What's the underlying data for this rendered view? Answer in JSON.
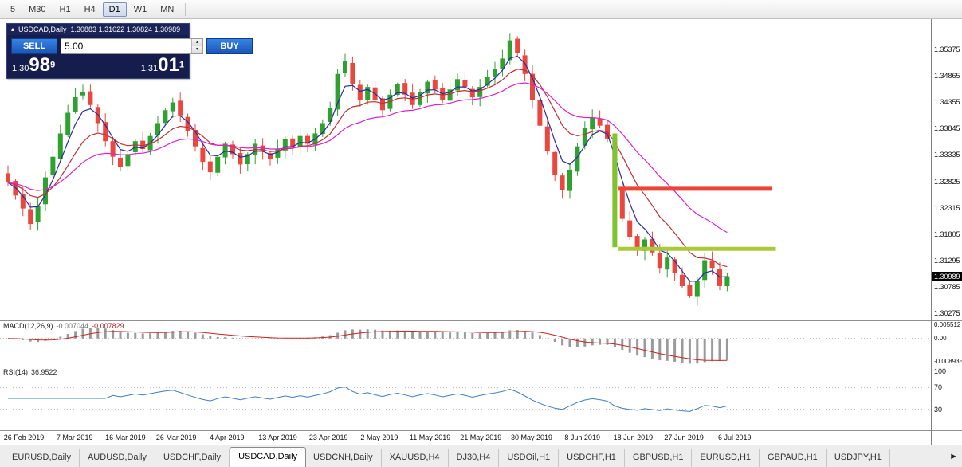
{
  "toolbar": {
    "timeframes": [
      "5",
      "M30",
      "H1",
      "H4",
      "D1",
      "W1",
      "MN"
    ],
    "active": "D1"
  },
  "chart": {
    "title": "USDCAD,Daily",
    "ohlc_text": "1.30883 1.31022 1.30824 1.30989",
    "trade_panel": {
      "sell_label": "SELL",
      "buy_label": "BUY",
      "volume": "5.00",
      "bid_small": "1.30",
      "bid_big": "98",
      "bid_sup": "9",
      "ask_small": "1.31",
      "ask_big": "01",
      "ask_sup": "1"
    },
    "current_price": "1.30989",
    "macd": {
      "label": "MACD(12,26,9)",
      "value": "-0.007044",
      "signal": "-0.007829",
      "axis": [
        "0.005512",
        "0.00",
        "-0.008935"
      ]
    },
    "rsi": {
      "label": "RSI(14)",
      "value": "36.9522",
      "axis": [
        "100",
        "70",
        "30"
      ]
    },
    "dates": [
      "26 Feb 2019",
      "7 Mar 2019",
      "16 Mar 2019",
      "26 Mar 2019",
      "4 Apr 2019",
      "13 Apr 2019",
      "23 Apr 2019",
      "2 May 2019",
      "11 May 2019",
      "21 May 2019",
      "30 May 2019",
      "8 Jun 2019",
      "18 Jun 2019",
      "27 Jun 2019",
      "6 Jul 2019"
    ]
  },
  "chart_data": {
    "type": "candlestick",
    "symbol": "USDCAD",
    "timeframe": "Daily",
    "ohlc_current": {
      "open": 1.30883,
      "high": 1.31022,
      "low": 1.30824,
      "close": 1.30989
    },
    "ylim": [
      1.30275,
      1.3596
    ],
    "price_ticks": [
      1.35375,
      1.34865,
      1.34355,
      1.33845,
      1.33335,
      1.32825,
      1.32315,
      1.31805,
      1.31295,
      1.30785,
      1.30275
    ],
    "closes": [
      1.328,
      1.3255,
      1.323,
      1.32,
      1.3235,
      1.329,
      1.333,
      1.3375,
      1.3415,
      1.3445,
      1.3455,
      1.343,
      1.3395,
      1.336,
      1.333,
      1.331,
      1.3335,
      1.336,
      1.3345,
      1.337,
      1.3395,
      1.342,
      1.3435,
      1.341,
      1.338,
      1.335,
      1.332,
      1.33,
      1.333,
      1.3355,
      1.3335,
      1.3315,
      1.3335,
      1.3355,
      1.334,
      1.3325,
      1.3345,
      1.3365,
      1.335,
      1.337,
      1.3355,
      1.3375,
      1.3395,
      1.3425,
      1.349,
      1.3515,
      1.347,
      1.344,
      1.3465,
      1.344,
      1.342,
      1.345,
      1.347,
      1.345,
      1.343,
      1.3455,
      1.3475,
      1.346,
      1.344,
      1.346,
      1.348,
      1.3465,
      1.3445,
      1.3465,
      1.3485,
      1.35,
      1.352,
      1.3555,
      1.353,
      1.349,
      1.344,
      1.339,
      1.334,
      1.3295,
      1.3265,
      1.3305,
      1.335,
      1.3385,
      1.3405,
      1.339,
      1.3365,
      1.327,
      1.321,
      1.3175,
      1.315,
      1.317,
      1.3145,
      1.3115,
      1.3135,
      1.3105,
      1.308,
      1.306,
      1.309,
      1.313,
      1.3115,
      1.308,
      1.3099
    ],
    "moving_averages": [
      {
        "period": 4,
        "color": "#2a2aa0"
      },
      {
        "period": 10,
        "color": "#c03038"
      },
      {
        "period": 22,
        "color": "#dd22cc"
      }
    ],
    "macd": {
      "fast": 12,
      "slow": 26,
      "signal": 9,
      "value": -0.007044,
      "signal_value": -0.007829,
      "scale_max": 0.005512,
      "scale_min": -0.008935,
      "hist_color": "#9a9a9a",
      "signal_color": "#cc2222"
    },
    "rsi": {
      "period": 14,
      "value": 36.9522,
      "levels": [
        70,
        30
      ],
      "color": "#3f7fbf"
    },
    "annotations": [
      {
        "type": "hline",
        "name": "resistance-line",
        "price": 1.3268,
        "from_index": 81.5,
        "to_index": 102,
        "color": "#ee4437",
        "width": 5
      },
      {
        "type": "hline",
        "name": "support-line",
        "price": 1.3152,
        "from_index": 81.5,
        "to_index": 102.5,
        "color": "#a9c93a",
        "width": 5
      },
      {
        "type": "vbar",
        "name": "event-bar",
        "index": 81,
        "price_from": 1.3155,
        "price_to": 1.3375,
        "color": "#7dc332",
        "width": 6
      }
    ],
    "colors": {
      "bull": "#2ea12e",
      "bear": "#e8483e",
      "background": "#ffffff"
    }
  },
  "tabs": {
    "items": [
      "EURUSD,Daily",
      "AUDUSD,Daily",
      "USDCHF,Daily",
      "USDCAD,Daily",
      "USDCNH,Daily",
      "XAUUSD,H4",
      "DJ30,H4",
      "USDOil,H1",
      "USDCHF,H1",
      "GBPUSD,H1",
      "EURUSD,H1",
      "GBPAUD,H1",
      "USDJPY,H1"
    ],
    "active_index": 3,
    "scroll_right_icon": "►"
  }
}
